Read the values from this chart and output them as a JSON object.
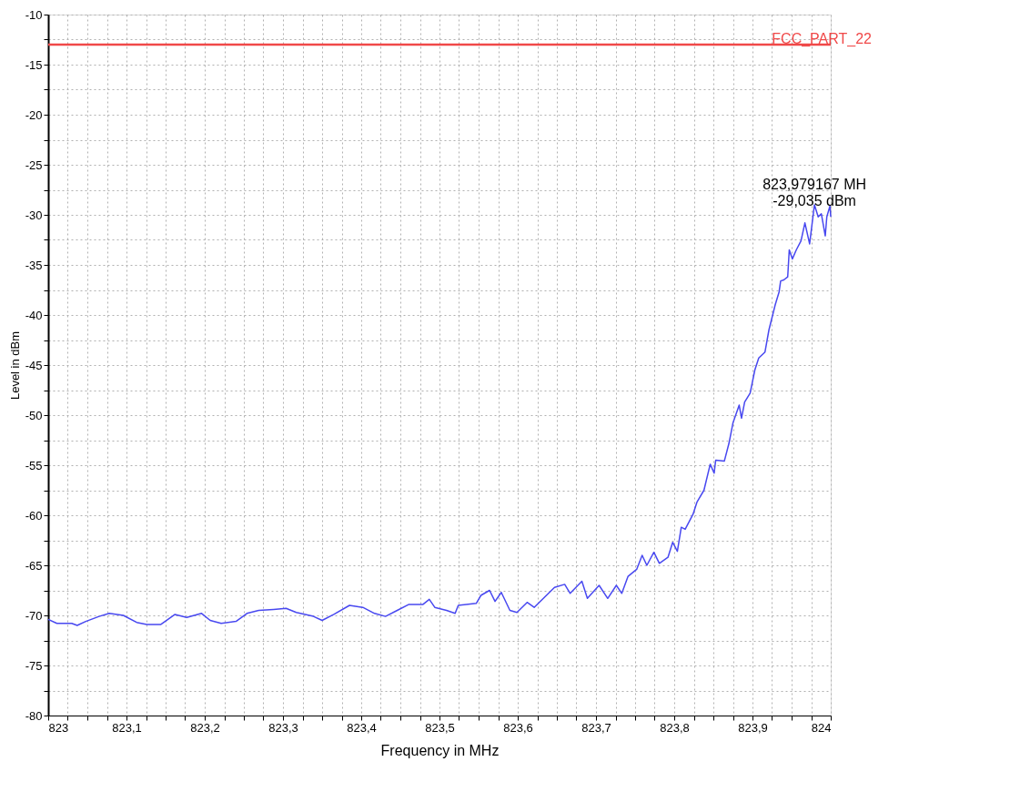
{
  "chart_data": {
    "type": "line",
    "xlabel": "Frequency in MHz",
    "ylabel": "Level in dBm",
    "x": [
      823.0,
      823.011,
      823.03,
      823.037,
      823.048,
      823.065,
      823.078,
      823.096,
      823.113,
      823.126,
      823.144,
      823.162,
      823.177,
      823.196,
      823.207,
      823.221,
      823.24,
      823.254,
      823.269,
      823.288,
      823.304,
      823.317,
      823.339,
      823.35,
      823.365,
      823.385,
      823.402,
      823.417,
      823.431,
      823.446,
      823.461,
      823.479,
      823.487,
      823.494,
      823.509,
      823.52,
      823.524,
      823.547,
      823.553,
      823.564,
      823.571,
      823.579,
      823.59,
      823.599,
      823.612,
      823.621,
      823.634,
      823.647,
      823.66,
      823.667,
      823.682,
      823.689,
      823.704,
      823.715,
      823.726,
      823.733,
      823.741,
      823.752,
      823.759,
      823.765,
      823.774,
      823.781,
      823.792,
      823.798,
      823.804,
      823.809,
      823.814,
      823.824,
      823.829,
      823.838,
      823.846,
      823.851,
      823.853,
      823.864,
      823.87,
      823.875,
      823.883,
      823.886,
      823.89,
      823.897,
      823.903,
      823.908,
      823.916,
      823.921,
      823.929,
      823.934,
      823.936,
      823.94,
      823.945,
      823.947,
      823.951,
      823.956,
      823.962,
      823.967,
      823.973,
      823.979167,
      823.984,
      823.988,
      823.993,
      823.995,
      823.999,
      824.0
    ],
    "series": [
      {
        "color": "#4848f0",
        "values": [
          -70.4,
          -70.8,
          -70.8,
          -71.0,
          -70.6,
          -70.1,
          -69.8,
          -70.0,
          -70.7,
          -70.9,
          -70.9,
          -69.9,
          -70.2,
          -69.8,
          -70.5,
          -70.8,
          -70.6,
          -69.8,
          -69.5,
          -69.4,
          -69.3,
          -69.7,
          -70.1,
          -70.5,
          -69.9,
          -69.0,
          -69.2,
          -69.8,
          -70.1,
          -69.5,
          -68.9,
          -68.9,
          -68.4,
          -69.2,
          -69.5,
          -69.8,
          -69.0,
          -68.8,
          -68.0,
          -67.5,
          -68.6,
          -67.7,
          -69.5,
          -69.7,
          -68.7,
          -69.2,
          -68.2,
          -67.2,
          -66.9,
          -67.8,
          -66.6,
          -68.3,
          -67.0,
          -68.3,
          -67.0,
          -67.8,
          -66.1,
          -65.4,
          -64.0,
          -65.0,
          -63.7,
          -64.8,
          -64.2,
          -62.7,
          -63.6,
          -61.2,
          -61.4,
          -59.9,
          -58.7,
          -57.5,
          -54.9,
          -55.8,
          -54.5,
          -54.6,
          -52.8,
          -50.8,
          -49.0,
          -50.3,
          -48.7,
          -47.8,
          -45.5,
          -44.3,
          -43.7,
          -41.5,
          -39.0,
          -37.7,
          -36.6,
          -36.5,
          -36.2,
          -33.5,
          -34.4,
          -33.5,
          -32.6,
          -30.8,
          -32.9,
          -29.0,
          -30.2,
          -29.9,
          -32.1,
          -30.2,
          -29.1,
          -30.2
        ]
      }
    ],
    "xlim": [
      823,
      824
    ],
    "ylim": [
      -80,
      -10
    ],
    "xticks": [
      823,
      {
        "value": 823.025,
        "label": null
      },
      {
        "value": 823.05,
        "label": null
      },
      {
        "value": 823.075,
        "label": null
      },
      {
        "value": 823.1,
        "label": "823,1"
      },
      {
        "value": 823.125,
        "label": null
      },
      {
        "value": 823.15,
        "label": null
      },
      {
        "value": 823.175,
        "label": null
      },
      {
        "value": 823.2,
        "label": "823,2"
      },
      {
        "value": 823.225,
        "label": null
      },
      {
        "value": 823.25,
        "label": null
      },
      {
        "value": 823.275,
        "label": null
      },
      {
        "value": 823.3,
        "label": "823,3"
      },
      {
        "value": 823.325,
        "label": null
      },
      {
        "value": 823.35,
        "label": null
      },
      {
        "value": 823.375,
        "label": null
      },
      {
        "value": 823.4,
        "label": "823,4"
      },
      {
        "value": 823.425,
        "label": null
      },
      {
        "value": 823.45,
        "label": null
      },
      {
        "value": 823.475,
        "label": null
      },
      {
        "value": 823.5,
        "label": "823,5"
      },
      {
        "value": 823.525,
        "label": null
      },
      {
        "value": 823.55,
        "label": null
      },
      {
        "value": 823.575,
        "label": null
      },
      {
        "value": 823.6,
        "label": "823,6"
      },
      {
        "value": 823.625,
        "label": null
      },
      {
        "value": 823.65,
        "label": null
      },
      {
        "value": 823.675,
        "label": null
      },
      {
        "value": 823.7,
        "label": "823,7"
      },
      {
        "value": 823.725,
        "label": null
      },
      {
        "value": 823.75,
        "label": null
      },
      {
        "value": 823.775,
        "label": null
      },
      {
        "value": 823.8,
        "label": "823,8"
      },
      {
        "value": 823.825,
        "label": null
      },
      {
        "value": 823.85,
        "label": null
      },
      {
        "value": 823.875,
        "label": null
      },
      {
        "value": 823.9,
        "label": "823,9"
      },
      {
        "value": 823.925,
        "label": null
      },
      {
        "value": 823.95,
        "label": null
      },
      {
        "value": 823.975,
        "label": null
      },
      824
    ],
    "yticks": [
      -80,
      {
        "value": -77.5,
        "label": null
      },
      -75,
      {
        "value": -72.5,
        "label": null
      },
      -70,
      {
        "value": -67.5,
        "label": null
      },
      -65,
      {
        "value": -62.5,
        "label": null
      },
      -60,
      {
        "value": -57.5,
        "label": null
      },
      -55,
      {
        "value": -52.5,
        "label": null
      },
      -50,
      {
        "value": -47.5,
        "label": null
      },
      -45,
      {
        "value": -42.5,
        "label": null
      },
      -40,
      {
        "value": -37.5,
        "label": null
      },
      -35,
      {
        "value": -32.5,
        "label": null
      },
      -30,
      {
        "value": -27.5,
        "label": null
      },
      -25,
      {
        "value": -22.5,
        "label": null
      },
      -20,
      {
        "value": -17.5,
        "label": null
      },
      -15,
      {
        "value": -12.5,
        "label": null
      },
      -10
    ],
    "grid": true,
    "ref_lines": [
      {
        "axis": "y",
        "value": -13,
        "label": "FCC_PART_22",
        "color": "#f04848"
      }
    ],
    "annotations": [
      {
        "text": "823,979167 MH\n-29,035 dBm",
        "x": 823.979167,
        "y": -29.035
      }
    ]
  }
}
